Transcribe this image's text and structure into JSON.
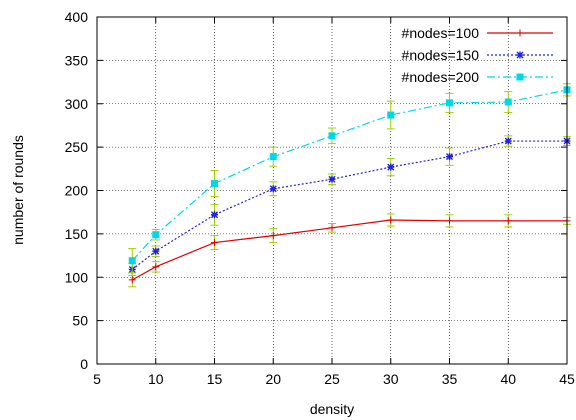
{
  "chart_data": {
    "type": "line",
    "xlabel": "density",
    "ylabel": "number of rounds",
    "xlim": [
      5,
      45
    ],
    "ylim": [
      0,
      400
    ],
    "x_ticks": [
      5,
      10,
      15,
      20,
      25,
      30,
      35,
      40,
      45
    ],
    "y_ticks": [
      0,
      50,
      100,
      150,
      200,
      250,
      300,
      350,
      400
    ],
    "grid": true,
    "legend_position": "top-right",
    "x": [
      8,
      10,
      15,
      20,
      25,
      30,
      35,
      40,
      45
    ],
    "series": [
      {
        "name": "#nodes=100",
        "color": "#e00000",
        "dash": "solid",
        "marker": "plus",
        "values": [
          97,
          112,
          140,
          148,
          157,
          166,
          165,
          165,
          165
        ],
        "errors": [
          8,
          6,
          8,
          8,
          5,
          7,
          7,
          7,
          4
        ]
      },
      {
        "name": "#nodes=150",
        "color": "#2020e0",
        "dash": "dotted",
        "marker": "star",
        "values": [
          109,
          130,
          172,
          202,
          213,
          227,
          239,
          257,
          257
        ],
        "errors": [
          7,
          6,
          12,
          8,
          6,
          10,
          10,
          6,
          5
        ]
      },
      {
        "name": "#nodes=200",
        "color": "#00d8e8",
        "dash": "dashdot",
        "marker": "square",
        "values": [
          119,
          149,
          208,
          239,
          263,
          287,
          301,
          302,
          316
        ],
        "errors": [
          14,
          6,
          15,
          11,
          9,
          16,
          11,
          12,
          7
        ]
      }
    ]
  }
}
